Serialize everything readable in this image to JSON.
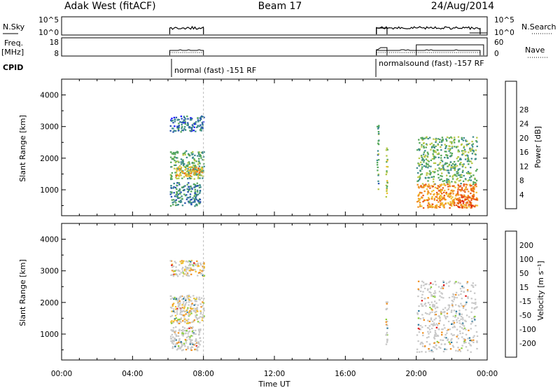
{
  "header": {
    "station": "Adak West (fitACF)",
    "beam": "Beam 17",
    "date": "24/Aug/2014"
  },
  "side_labels": {
    "nsky": "N.Sky",
    "freq_line1": "Freq.",
    "freq_line2": "[MHz]",
    "cpid": "CPID",
    "nsearch": "N.Search",
    "nave": "Nave"
  },
  "strip_ticks": {
    "nsky_left": [
      "10^5",
      "10^0"
    ],
    "nsky_right": [
      "10^5",
      "10^0"
    ],
    "freq_left": [
      "18",
      "8"
    ],
    "freq_right": [
      "60",
      "0"
    ]
  },
  "cpid_labels": [
    "normal (fast) -151 RF",
    "normalsound (fast) -157 RF"
  ],
  "time_axis": {
    "label": "Time UT",
    "range_hours": [
      0,
      24
    ],
    "ticks": [
      "00:00",
      "04:00",
      "08:00",
      "12:00",
      "16:00",
      "20:00",
      "00:00"
    ]
  },
  "range_axis": {
    "label": "Slant Range [km]",
    "range_km": [
      180,
      4500
    ],
    "ticks": [
      "1000",
      "2000",
      "3000",
      "4000"
    ]
  },
  "power_colorbar": {
    "label": "Power [dB]",
    "ticks": [
      "4",
      "8",
      "12",
      "16",
      "20",
      "24",
      "28"
    ],
    "colors": [
      "#1a1aff",
      "#2a55b0",
      "#3c8a8c",
      "#56a85a",
      "#b6c846",
      "#f0c030",
      "#f09020",
      "#e85a18",
      "#e02010"
    ]
  },
  "velocity_colorbar": {
    "label": "Velocity [m s⁻¹]",
    "ticks": [
      "200",
      "100",
      "50",
      "15",
      "-15",
      "-50",
      "-100",
      "-200"
    ],
    "colors": [
      "#2828c8",
      "#2e7a9c",
      "#3ea04c",
      "#8ccf3c",
      "#c8c8c8",
      "#f0c030",
      "#f09020",
      "#e85a18",
      "#e01010"
    ]
  },
  "chart_data": {
    "type": "heatmap",
    "title": "Adak West (fitACF) Beam 17 24/Aug/2014",
    "xlabel": "Time UT",
    "ylabel": "Slant Range [km]",
    "xlim_hours": [
      0,
      24
    ],
    "ylim_km": [
      180,
      4500
    ],
    "panels": [
      {
        "name": "Power [dB]",
        "echo_regions": [
          {
            "t": [
              6.1,
              8.0
            ],
            "r": [
              2850,
              3350
            ],
            "value_db": 6
          },
          {
            "t": [
              6.1,
              8.0
            ],
            "r": [
              1350,
              2250
            ],
            "value_db": 12
          },
          {
            "t": [
              6.4,
              7.9
            ],
            "r": [
              1450,
              1750
            ],
            "value_db": 22
          },
          {
            "t": [
              6.1,
              7.8
            ],
            "r": [
              500,
              1250
            ],
            "value_db": 8
          },
          {
            "t": [
              17.75,
              17.85
            ],
            "r": [
              1000,
              3100
            ],
            "value_db": 10
          },
          {
            "t": [
              18.25,
              18.35
            ],
            "r": [
              700,
              2400
            ],
            "value_db": 16
          },
          {
            "t": [
              20.0,
              23.4
            ],
            "r": [
              1200,
              2700
            ],
            "value_db": 12
          },
          {
            "t": [
              20.0,
              23.4
            ],
            "r": [
              450,
              1200
            ],
            "value_db": 24
          },
          {
            "t": [
              22.3,
              23.4
            ],
            "r": [
              450,
              800
            ],
            "value_db": 28
          }
        ]
      },
      {
        "name": "Velocity [m s-1]",
        "echo_regions": [
          {
            "t": [
              6.1,
              8.0
            ],
            "r": [
              2850,
              3350
            ],
            "value_ms": -40
          },
          {
            "t": [
              6.1,
              8.0
            ],
            "r": [
              1350,
              2250
            ],
            "value_ms": -20
          },
          {
            "t": [
              6.1,
              7.8
            ],
            "r": [
              500,
              1250
            ],
            "value_ms": -10
          },
          {
            "t": [
              18.25,
              18.35
            ],
            "r": [
              700,
              2400
            ],
            "value_ms": 0
          },
          {
            "t": [
              20.0,
              23.4
            ],
            "r": [
              450,
              2700
            ],
            "value_ms": 0
          }
        ]
      }
    ],
    "cpid_segments": [
      {
        "label": "normal (fast) -151 RF",
        "t": [
          6.1,
          8.0
        ]
      },
      {
        "label": "normalsound (fast) -157 RF",
        "t": [
          17.75,
          23.6
        ]
      }
    ]
  }
}
